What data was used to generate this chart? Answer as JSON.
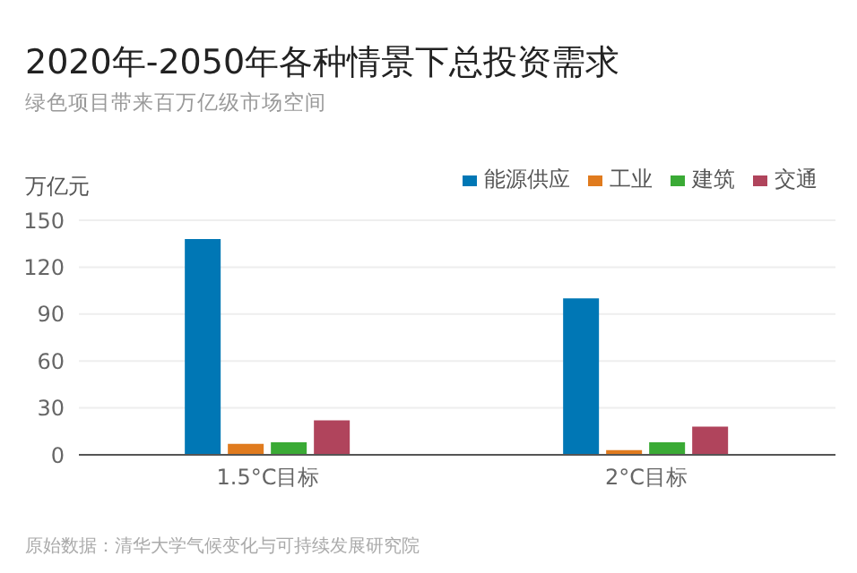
{
  "chart_data": {
    "type": "bar",
    "title": "2020年-2050年各种情景下总投资需求",
    "subtitle": "绿色项目带来百万亿级市场空间",
    "ylabel": "万亿元",
    "categories": [
      "1.5°C目标",
      "2°C目标"
    ],
    "series": [
      {
        "name": "能源供应",
        "color": "#0077b5",
        "values": [
          138,
          100
        ]
      },
      {
        "name": "工业",
        "color": "#e07b1e",
        "values": [
          7,
          3
        ]
      },
      {
        "name": "建筑",
        "color": "#3aaa35",
        "values": [
          8,
          8
        ]
      },
      {
        "name": "交通",
        "color": "#b0445c",
        "values": [
          22,
          18
        ]
      }
    ],
    "ylim": [
      0,
      150
    ],
    "yticks": [
      0,
      30,
      60,
      90,
      120,
      150
    ],
    "grid": "y",
    "legend": "top right",
    "annotations": [
      "原始数据：清华大学气候变化与可持续发展研究院"
    ]
  }
}
